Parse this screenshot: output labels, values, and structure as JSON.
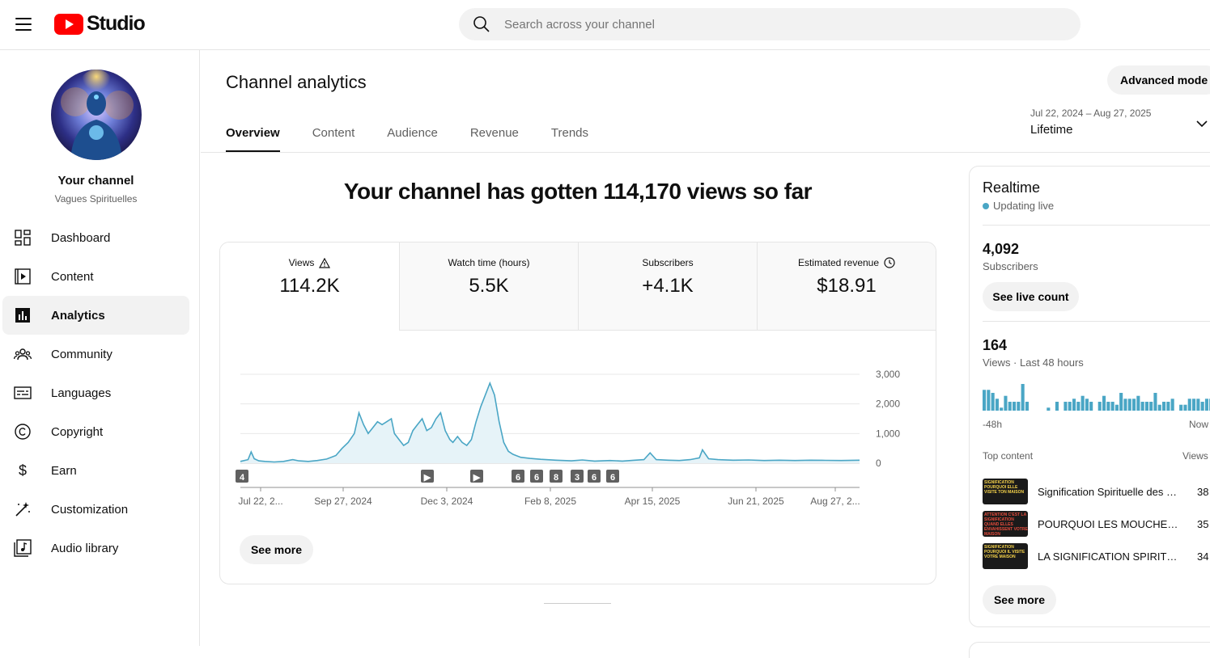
{
  "header": {
    "logo_text": "Studio",
    "search_placeholder": "Search across your channel"
  },
  "sidebar": {
    "channel_title": "Your channel",
    "channel_name": "Vagues Spirituelles",
    "items": [
      {
        "label": "Dashboard",
        "icon": "dashboard-icon",
        "active": false
      },
      {
        "label": "Content",
        "icon": "content-icon",
        "active": false
      },
      {
        "label": "Analytics",
        "icon": "analytics-icon",
        "active": true
      },
      {
        "label": "Community",
        "icon": "community-icon",
        "active": false
      },
      {
        "label": "Languages",
        "icon": "languages-icon",
        "active": false
      },
      {
        "label": "Copyright",
        "icon": "copyright-icon",
        "active": false
      },
      {
        "label": "Earn",
        "icon": "earn-icon",
        "active": false
      },
      {
        "label": "Customization",
        "icon": "customization-icon",
        "active": false
      },
      {
        "label": "Audio library",
        "icon": "audio-library-icon",
        "active": false
      }
    ]
  },
  "main": {
    "title": "Channel analytics",
    "advanced_mode": "Advanced mode",
    "tabs": [
      "Overview",
      "Content",
      "Audience",
      "Revenue",
      "Trends"
    ],
    "active_tab": "Overview",
    "date_range": {
      "sub": "Jul 22, 2024 – Aug 27, 2025",
      "value": "Lifetime"
    },
    "headline": "Your channel has gotten 114,170 views so far",
    "metrics": [
      {
        "label": "Views",
        "value": "114.2K",
        "icon": "warning-icon"
      },
      {
        "label": "Watch time (hours)",
        "value": "5.5K",
        "icon": ""
      },
      {
        "label": "Subscribers",
        "value": "+4.1K",
        "icon": ""
      },
      {
        "label": "Estimated revenue",
        "value": "$18.91",
        "icon": "clock-icon"
      }
    ],
    "see_more": "See more",
    "chart_markers": [
      "4",
      "▶",
      "▶",
      "6",
      "6",
      "8",
      "3",
      "6",
      "6"
    ]
  },
  "chart_data": {
    "type": "area",
    "title": "",
    "xlabel": "",
    "ylabel": "",
    "ylim": [
      0,
      3000
    ],
    "yticks": [
      "3,000",
      "2,000",
      "1,000",
      "0"
    ],
    "xticks": [
      "Jul 22, 2...",
      "Sep 27, 2024",
      "Dec 3, 2024",
      "Feb 8, 2025",
      "Apr 15, 2025",
      "Jun 21, 2025",
      "Aug 27, 2..."
    ],
    "grid": true,
    "color": "#4aa6c5",
    "days": 402,
    "points": [
      [
        0,
        60
      ],
      [
        5,
        120
      ],
      [
        7,
        380
      ],
      [
        9,
        150
      ],
      [
        12,
        80
      ],
      [
        16,
        60
      ],
      [
        22,
        40
      ],
      [
        28,
        60
      ],
      [
        34,
        120
      ],
      [
        38,
        80
      ],
      [
        44,
        60
      ],
      [
        50,
        90
      ],
      [
        56,
        140
      ],
      [
        62,
        260
      ],
      [
        66,
        500
      ],
      [
        70,
        700
      ],
      [
        74,
        1000
      ],
      [
        77,
        1700
      ],
      [
        80,
        1300
      ],
      [
        83,
        1000
      ],
      [
        86,
        1200
      ],
      [
        89,
        1400
      ],
      [
        92,
        1300
      ],
      [
        95,
        1400
      ],
      [
        98,
        1500
      ],
      [
        100,
        1000
      ],
      [
        103,
        800
      ],
      [
        106,
        600
      ],
      [
        109,
        700
      ],
      [
        112,
        1100
      ],
      [
        115,
        1300
      ],
      [
        118,
        1500
      ],
      [
        121,
        1100
      ],
      [
        124,
        1200
      ],
      [
        127,
        1500
      ],
      [
        130,
        1700
      ],
      [
        133,
        1100
      ],
      [
        136,
        800
      ],
      [
        138,
        700
      ],
      [
        141,
        900
      ],
      [
        144,
        700
      ],
      [
        147,
        600
      ],
      [
        150,
        800
      ],
      [
        153,
        1400
      ],
      [
        156,
        1900
      ],
      [
        159,
        2300
      ],
      [
        162,
        2700
      ],
      [
        165,
        2300
      ],
      [
        168,
        1400
      ],
      [
        171,
        700
      ],
      [
        174,
        400
      ],
      [
        177,
        300
      ],
      [
        182,
        200
      ],
      [
        188,
        160
      ],
      [
        195,
        130
      ],
      [
        205,
        100
      ],
      [
        215,
        80
      ],
      [
        222,
        110
      ],
      [
        230,
        70
      ],
      [
        240,
        90
      ],
      [
        248,
        70
      ],
      [
        256,
        100
      ],
      [
        262,
        120
      ],
      [
        266,
        350
      ],
      [
        270,
        120
      ],
      [
        278,
        100
      ],
      [
        285,
        90
      ],
      [
        292,
        120
      ],
      [
        298,
        180
      ],
      [
        300,
        450
      ],
      [
        304,
        150
      ],
      [
        310,
        120
      ],
      [
        320,
        100
      ],
      [
        330,
        110
      ],
      [
        340,
        90
      ],
      [
        350,
        100
      ],
      [
        360,
        90
      ],
      [
        370,
        100
      ],
      [
        380,
        95
      ],
      [
        390,
        90
      ],
      [
        402,
        100
      ]
    ]
  },
  "realtime": {
    "title": "Realtime",
    "live": "Updating live",
    "subs_value": "4,092",
    "subs_label": "Subscribers",
    "see_live": "See live count",
    "views_value": "164",
    "views_label": "Views · Last 48 hours",
    "axis_left": "-48h",
    "axis_right": "Now",
    "bars": [
      7,
      7,
      6,
      4,
      1,
      5,
      3,
      3,
      3,
      9,
      3,
      0,
      0,
      0,
      0,
      1,
      0,
      3,
      0,
      3,
      3,
      4,
      3,
      5,
      4,
      3,
      0,
      3,
      5,
      3,
      3,
      2,
      6,
      4,
      4,
      4,
      5,
      3,
      3,
      3,
      6,
      2,
      3,
      3,
      4,
      0,
      2,
      2,
      4,
      4,
      4,
      3,
      4,
      4,
      4,
      4
    ],
    "top_content_label": "Top content",
    "views_header": "Views",
    "rows": [
      {
        "title": "Signification Spirituelle des …",
        "views": "38",
        "thumb_text": "SIGNIFICATION POURQUOI ELLE VISITE TON MAISON"
      },
      {
        "title": "POURQUOI LES MOUCHES E…",
        "views": "35",
        "thumb_text": "ATTENTION C'EST LA SIGNIFICATION QUAND ELLES ENVAHISSENT VOTRE MAISON"
      },
      {
        "title": "LA SIGNIFICATION SPIRITU…",
        "views": "34",
        "thumb_text": "SIGNIFICATION POURQUOI IL VISITE VOTRE MAISON"
      }
    ],
    "see_more": "See more"
  }
}
